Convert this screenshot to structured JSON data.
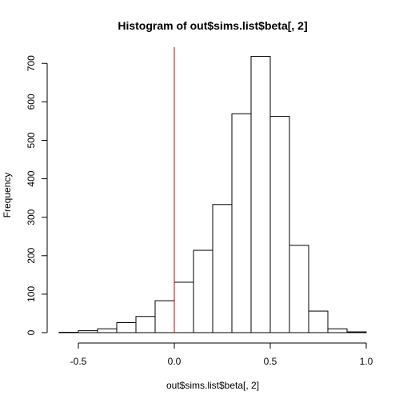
{
  "chart_data": {
    "type": "bar",
    "title": "Histogram of out$sims.list$beta[, 2]",
    "xlabel": "out$sims.list$beta[, 2]",
    "ylabel": "Frequency",
    "xlim": [
      -0.6,
      1.0
    ],
    "ylim": [
      0,
      740
    ],
    "x_ticks": [
      -0.5,
      0.0,
      0.5,
      1.0
    ],
    "x_tick_labels": [
      "-0.5",
      "0.0",
      "0.5",
      "1.0"
    ],
    "y_ticks": [
      0,
      100,
      200,
      300,
      400,
      500,
      600,
      700
    ],
    "y_tick_labels": [
      "0",
      "100",
      "200",
      "300",
      "400",
      "500",
      "600",
      "700"
    ],
    "bins": [
      {
        "start": -0.6,
        "end": -0.5,
        "count": 1
      },
      {
        "start": -0.5,
        "end": -0.4,
        "count": 5
      },
      {
        "start": -0.4,
        "end": -0.3,
        "count": 10
      },
      {
        "start": -0.3,
        "end": -0.2,
        "count": 26
      },
      {
        "start": -0.2,
        "end": -0.1,
        "count": 42
      },
      {
        "start": -0.1,
        "end": 0.0,
        "count": 83
      },
      {
        "start": 0.0,
        "end": 0.1,
        "count": 131
      },
      {
        "start": 0.1,
        "end": 0.2,
        "count": 214
      },
      {
        "start": 0.2,
        "end": 0.3,
        "count": 333
      },
      {
        "start": 0.3,
        "end": 0.4,
        "count": 569
      },
      {
        "start": 0.4,
        "end": 0.5,
        "count": 718
      },
      {
        "start": 0.5,
        "end": 0.6,
        "count": 562
      },
      {
        "start": 0.6,
        "end": 0.7,
        "count": 227
      },
      {
        "start": 0.7,
        "end": 0.8,
        "count": 56
      },
      {
        "start": 0.8,
        "end": 0.9,
        "count": 10
      },
      {
        "start": 0.9,
        "end": 1.0,
        "count": 2
      }
    ],
    "reference_line": {
      "x": 0.0,
      "color": "#cc0000"
    },
    "bar_fill": "#ffffff",
    "bar_stroke": "#000000",
    "grid": false,
    "legend": "none"
  }
}
